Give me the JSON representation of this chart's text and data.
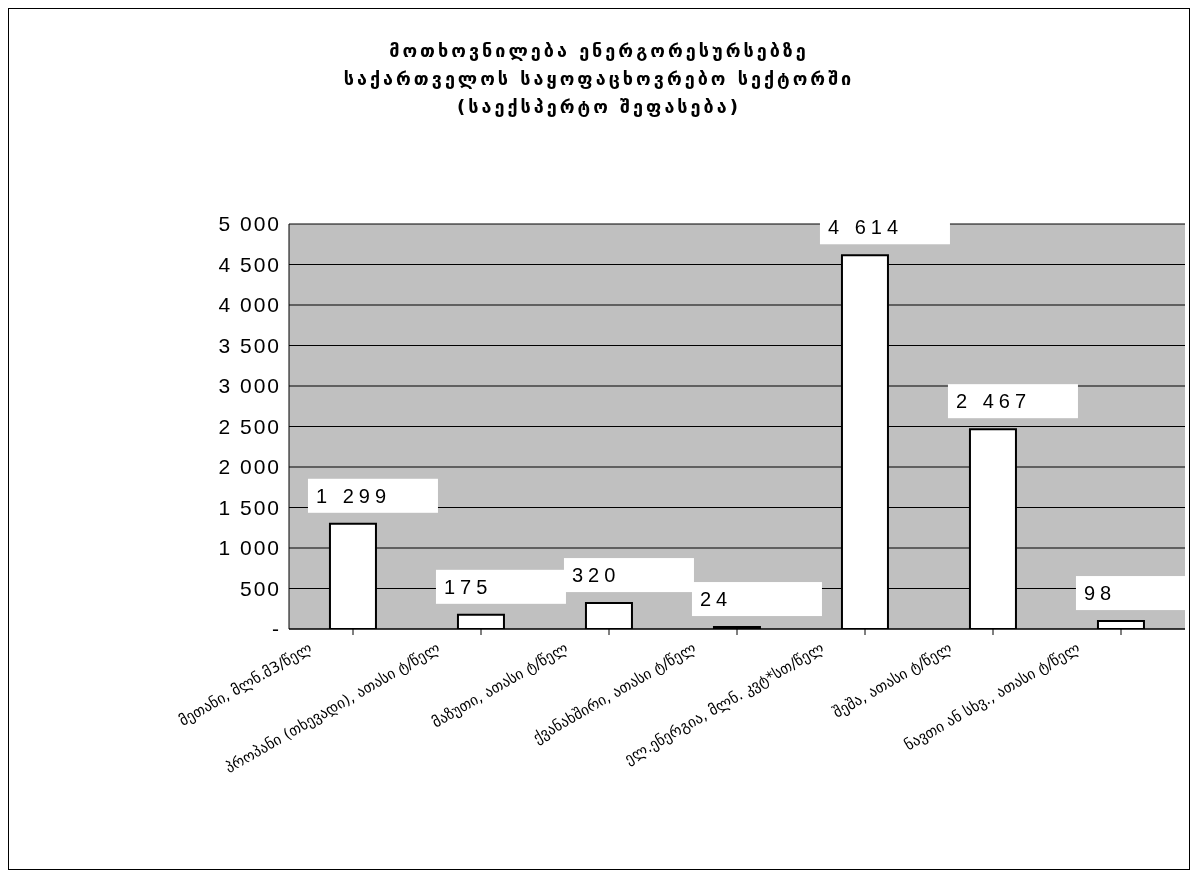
{
  "chart_data": {
    "type": "bar",
    "title": "მოთხოვნილება ენერგორესურსებზე საქართველოს საყოფაცხოვრებო სექტორში (საექსპერტო შეფასება)",
    "categories": [
      "მეთანი, მლნ.მ3/წელ",
      "პროპანი (თხევადი), ათასი ტ/წელ",
      "მაზუთი, ათასი ტ/წელ",
      "ქვანახშირი, ათასი ტ/წელ",
      "ელ.ენერგია, მლნ. კვტ*სთ/წელ",
      "შეშა, ათასი ტ/წელ",
      "ნავთი ან სხვ., ათასი ტ/წელ"
    ],
    "values": [
      1299,
      175,
      320,
      24,
      4614,
      2467,
      98
    ],
    "value_labels": [
      "1 299",
      "175",
      "320",
      "24",
      "4 614",
      "2 467",
      "98"
    ],
    "color": "#ffffff",
    "ylim": [
      0,
      5000
    ],
    "yticks": [
      {
        "value": 0,
        "label": "-"
      },
      {
        "value": 500,
        "label": "500"
      },
      {
        "value": 1000,
        "label": "1 000"
      },
      {
        "value": 1500,
        "label": "1 500"
      },
      {
        "value": 2000,
        "label": "2 000"
      },
      {
        "value": 2500,
        "label": "2 500"
      },
      {
        "value": 3000,
        "label": "3 000"
      },
      {
        "value": 3500,
        "label": "3 500"
      },
      {
        "value": 4000,
        "label": "4 000"
      },
      {
        "value": 4500,
        "label": "4 500"
      },
      {
        "value": 5000,
        "label": "5 000"
      }
    ],
    "grid": "y",
    "legend": false
  }
}
